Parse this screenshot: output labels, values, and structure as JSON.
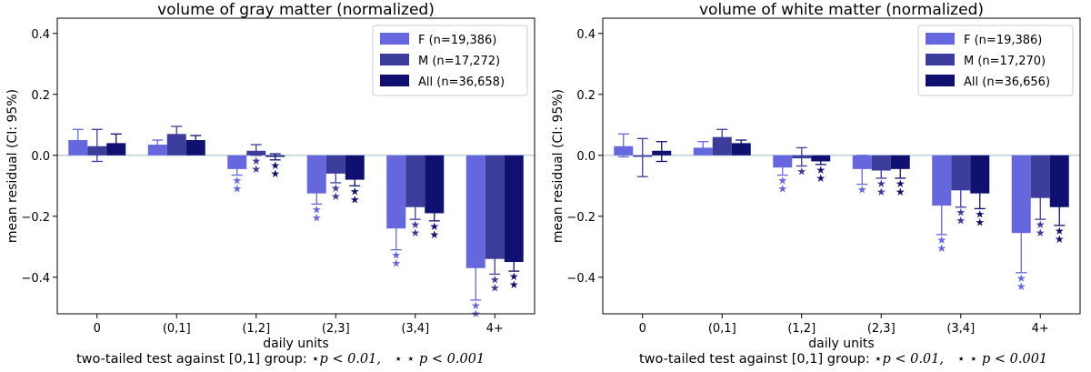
{
  "chart_data": [
    {
      "type": "bar",
      "title": "volume of gray matter (normalized)",
      "xlabel": "daily units",
      "ylabel": "mean residual (CI: 95%)",
      "ylim": [
        -0.52,
        0.45
      ],
      "yticks": [
        0.4,
        0.2,
        0.0,
        -0.2,
        -0.4
      ],
      "ytick_labels": [
        "0.4",
        "0.2",
        "0.0",
        "−0.2",
        "−0.4"
      ],
      "categories": [
        "0",
        "(0,1]",
        "(1,2]",
        "(2,3]",
        "(3,4]",
        "4+"
      ],
      "grid": false,
      "legend_position": "top-right",
      "reference_line": 0.0,
      "series": [
        {
          "name": "F",
          "legend_count": "(n=19,386)",
          "color": "#6666dd",
          "values": [
            0.05,
            0.035,
            -0.045,
            -0.125,
            -0.24,
            -0.37
          ],
          "ci": [
            [
              0.015,
              0.085
            ],
            [
              0.02,
              0.05
            ],
            [
              -0.065,
              -0.02
            ],
            [
              -0.16,
              -0.085
            ],
            [
              -0.31,
              -0.175
            ],
            [
              -0.475,
              -0.265
            ]
          ],
          "significance": [
            "",
            "",
            "⋆⋆",
            "⋆⋆",
            "⋆⋆",
            "⋆⋆"
          ]
        },
        {
          "name": "M",
          "legend_count": "(n=17,272)",
          "color": "#3c3c9c",
          "values": [
            0.03,
            0.07,
            0.015,
            -0.06,
            -0.17,
            -0.34
          ],
          "ci": [
            [
              -0.02,
              0.085
            ],
            [
              0.05,
              0.095
            ],
            [
              0.0,
              0.035
            ],
            [
              -0.09,
              -0.035
            ],
            [
              -0.21,
              -0.135
            ],
            [
              -0.39,
              -0.29
            ]
          ],
          "significance": [
            "",
            "",
            "⋆⋆",
            "⋆⋆",
            "⋆⋆",
            "⋆⋆"
          ]
        },
        {
          "name": "All",
          "legend_count": "(n=36,658)",
          "color": "#101070",
          "values": [
            0.04,
            0.05,
            -0.005,
            -0.08,
            -0.19,
            -0.35
          ],
          "ci": [
            [
              0.015,
              0.07
            ],
            [
              0.04,
              0.065
            ],
            [
              -0.015,
              0.005
            ],
            [
              -0.1,
              -0.06
            ],
            [
              -0.215,
              -0.165
            ],
            [
              -0.38,
              -0.32
            ]
          ],
          "significance": [
            "",
            "",
            "⋆⋆",
            "⋆⋆",
            "⋆⋆",
            "⋆⋆"
          ]
        }
      ]
    },
    {
      "type": "bar",
      "title": "volume of white matter (normalized)",
      "xlabel": "daily units",
      "ylabel": "mean residual (CI: 95%)",
      "ylim": [
        -0.52,
        0.45
      ],
      "yticks": [
        0.4,
        0.2,
        0.0,
        -0.2,
        -0.4
      ],
      "ytick_labels": [
        "0.4",
        "0.2",
        "0.0",
        "−0.2",
        "−0.4"
      ],
      "categories": [
        "0",
        "(0,1]",
        "(1,2]",
        "(2,3]",
        "(3,4]",
        "4+"
      ],
      "grid": false,
      "legend_position": "top-right",
      "reference_line": 0.0,
      "series": [
        {
          "name": "F",
          "legend_count": "(n=19,386)",
          "color": "#6666dd",
          "values": [
            0.03,
            0.025,
            -0.04,
            -0.045,
            -0.165,
            -0.255
          ],
          "ci": [
            [
              -0.005,
              0.07
            ],
            [
              0.01,
              0.045
            ],
            [
              -0.065,
              -0.015
            ],
            [
              -0.095,
              0.0
            ],
            [
              -0.26,
              -0.075
            ],
            [
              -0.385,
              -0.13
            ]
          ],
          "significance": [
            "",
            "",
            "⋆⋆",
            "⋆",
            "⋆⋆",
            "⋆⋆"
          ]
        },
        {
          "name": "M",
          "legend_count": "(n=17,270)",
          "color": "#3c3c9c",
          "values": [
            -0.005,
            0.06,
            -0.01,
            -0.05,
            -0.115,
            -0.14
          ],
          "ci": [
            [
              -0.07,
              0.055
            ],
            [
              0.04,
              0.085
            ],
            [
              -0.035,
              0.025
            ],
            [
              -0.075,
              -0.025
            ],
            [
              -0.17,
              -0.06
            ],
            [
              -0.21,
              -0.075
            ]
          ],
          "significance": [
            "",
            "",
            "⋆",
            "⋆⋆",
            "⋆⋆",
            "⋆⋆"
          ]
        },
        {
          "name": "All",
          "legend_count": "(n=36,656)",
          "color": "#101070",
          "values": [
            0.015,
            0.04,
            -0.02,
            -0.045,
            -0.125,
            -0.17
          ],
          "ci": [
            [
              -0.02,
              0.045
            ],
            [
              0.025,
              0.05
            ],
            [
              -0.03,
              -0.005
            ],
            [
              -0.075,
              -0.02
            ],
            [
              -0.175,
              -0.09
            ],
            [
              -0.23,
              -0.115
            ]
          ],
          "significance": [
            "",
            "",
            "⋆⋆",
            "⋆⋆",
            "⋆⋆",
            "⋆⋆"
          ]
        }
      ]
    }
  ],
  "footnote": {
    "prefix": "two-tailed test against [0,1] group:",
    "single_star": "⋆",
    "single_threshold": "p < 0.01,",
    "double_star": "⋆ ⋆",
    "double_threshold": "p < 0.001"
  }
}
